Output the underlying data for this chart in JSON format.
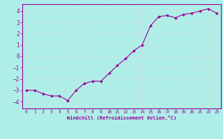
{
  "x": [
    0,
    1,
    2,
    3,
    4,
    5,
    6,
    7,
    8,
    9,
    10,
    11,
    12,
    13,
    14,
    15,
    16,
    17,
    18,
    19,
    20,
    21,
    22,
    23
  ],
  "y": [
    -3.0,
    -3.0,
    -3.3,
    -3.5,
    -3.5,
    -3.9,
    -3.0,
    -2.4,
    -2.2,
    -2.2,
    -1.5,
    -0.8,
    -0.2,
    0.5,
    1.0,
    2.7,
    3.5,
    3.6,
    3.4,
    3.7,
    3.8,
    4.0,
    4.2,
    3.8
  ],
  "line_color": "#990099",
  "marker_color": "#990099",
  "bg_color": "#aeeee8",
  "grid_color": "#c8e8e0",
  "xlabel": "Windchill (Refroidissement éolien,°C)",
  "xlabel_color": "#990099",
  "tick_color": "#990099",
  "spine_color": "#990099",
  "ylim": [
    -4.6,
    4.6
  ],
  "xlim": [
    -0.5,
    23.5
  ],
  "yticks": [
    -4,
    -3,
    -2,
    -1,
    0,
    1,
    2,
    3,
    4
  ],
  "xticks": [
    0,
    1,
    2,
    3,
    4,
    5,
    6,
    7,
    8,
    9,
    10,
    11,
    12,
    13,
    14,
    15,
    16,
    17,
    18,
    19,
    20,
    21,
    22,
    23
  ]
}
